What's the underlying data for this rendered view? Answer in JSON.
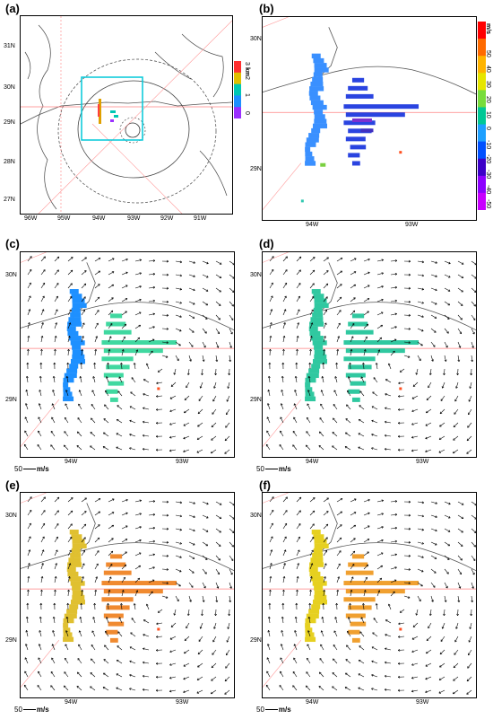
{
  "panels": {
    "a": {
      "label": "(a)",
      "lat_labels": [
        "31N",
        "30N",
        "29N",
        "28N",
        "27N"
      ],
      "lon_labels": [
        "96W",
        "95W",
        "94W",
        "93W",
        "92W",
        "91W"
      ],
      "colorbar": {
        "labels": [
          "0",
          "1",
          "2",
          "3"
        ],
        "unit": "km",
        "colors": [
          "#9b30ff",
          "#1e90ff",
          "#00c8b4",
          "#e0c000",
          "#ff3030"
        ]
      }
    },
    "b": {
      "label": "(b)",
      "lat_labels": [
        "30N",
        "29N"
      ],
      "lon_labels": [
        "94W",
        "93W"
      ],
      "colorbar": {
        "labels": [
          "50",
          "40",
          "30",
          "20",
          "10",
          "0",
          "-10",
          "-20",
          "-30",
          "-40",
          "-50"
        ],
        "unit": "m/s",
        "colors": [
          "#ff0000",
          "#ff6a00",
          "#ffb400",
          "#e6e600",
          "#78dc3c",
          "#00c896",
          "#1ea0ff",
          "#0050ff",
          "#3c00c8",
          "#8c00ff",
          "#c800ff"
        ]
      }
    },
    "c": {
      "label": "(c)",
      "lat_labels": [
        "30N",
        "29N"
      ],
      "lon_labels": [
        "94W",
        "93W"
      ],
      "ref_vector": {
        "value": "50",
        "unit": "m/s"
      }
    },
    "d": {
      "label": "(d)",
      "lat_labels": [
        "30N",
        "29N"
      ],
      "lon_labels": [
        "94W",
        "93W"
      ],
      "ref_vector": {
        "value": "50",
        "unit": "m/s"
      }
    },
    "e": {
      "label": "(e)",
      "lat_labels": [
        "30N",
        "29N"
      ],
      "lon_labels": [
        "94W",
        "93W"
      ],
      "ref_vector": {
        "value": "50",
        "unit": "m/s"
      }
    },
    "f": {
      "label": "(f)",
      "lat_labels": [
        "30N",
        "29N"
      ],
      "lon_labels": [
        "94W",
        "93W"
      ],
      "ref_vector": {
        "value": "50",
        "unit": "m/s"
      }
    }
  },
  "colors": {
    "radial_line": "#ff8080",
    "box": "#00c8d8",
    "coast": "#555555",
    "c_west": "#1e90ff",
    "c_east": "#40d8a0",
    "d_west": "#30c8a0",
    "d_east": "#30c8a0",
    "e_west": "#e0c030",
    "e_east": "#f08a30",
    "f_west": "#e6d020",
    "f_east": "#f0a030"
  }
}
